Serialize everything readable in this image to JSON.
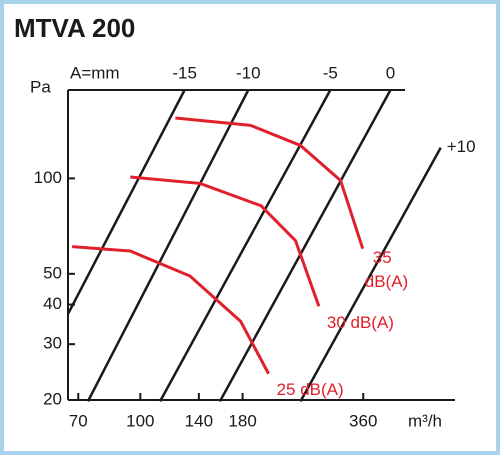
{
  "chart_data": {
    "type": "line",
    "title": "MTVA 200",
    "x_label": "m³/h",
    "y_label": "Pa",
    "top_label": "A=mm",
    "xscale": "log",
    "yscale": "log",
    "xlim": [
      66,
      610
    ],
    "ylim": [
      20,
      190
    ],
    "xticks": [
      70,
      100,
      140,
      180,
      360
    ],
    "yticks": [
      20,
      30,
      40,
      50,
      100
    ],
    "series": [
      {
        "name": "-15",
        "color": "#1a1a1a",
        "x": [
          66.1,
          129
        ],
        "y": [
          37.5,
          190
        ]
      },
      {
        "name": "-10",
        "color": "#1a1a1a",
        "x": [
          74,
          186
        ],
        "y": [
          19.8,
          190
        ]
      },
      {
        "name": "-5",
        "color": "#1a1a1a",
        "x": [
          112,
          298
        ],
        "y": [
          19.8,
          190
        ]
      },
      {
        "name": "0",
        "color": "#1a1a1a",
        "x": [
          158,
          421
        ],
        "y": [
          19.8,
          190
        ]
      },
      {
        "name": "+10",
        "color": "#1a1a1a",
        "x": [
          251,
          562
        ],
        "y": [
          19.8,
          125
        ]
      },
      {
        "name": "35 dB(A)",
        "label_lines": [
          "35",
          "dB(A)"
        ],
        "color": "#e0202a",
        "x": [
          122.3,
          188.4,
          251,
          316,
          359
        ],
        "y": [
          155,
          147,
          127,
          98.5,
          60
        ]
      },
      {
        "name": "30 dB(A)",
        "color": "#e0202a",
        "x": [
          94.4,
          141,
          200,
          244,
          279
        ],
        "y": [
          101,
          96.4,
          82,
          63.6,
          39.5
        ]
      },
      {
        "name": "25 dB(A)",
        "color": "#e0202a",
        "x": [
          67.6,
          94.4,
          133,
          178,
          209
        ],
        "y": [
          60.9,
          59,
          49.2,
          35.4,
          24.2
        ]
      }
    ]
  }
}
